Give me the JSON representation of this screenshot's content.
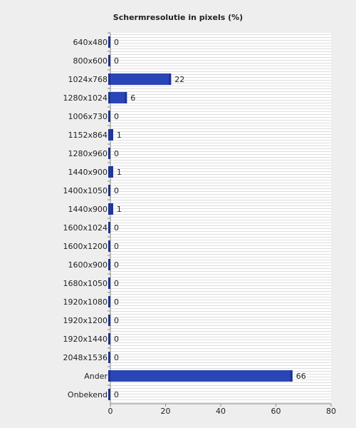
{
  "chart_data": {
    "type": "bar",
    "orientation": "horizontal",
    "title": "Schermresolutie in pixels (%)",
    "categories": [
      "640x480",
      "800x600",
      "1024x768",
      "1280x1024",
      "1006x730",
      "1152x864",
      "1280x960",
      "1440x900",
      "1400x1050",
      "1440x900",
      "1600x1024",
      "1600x1200",
      "1600x900",
      "1680x1050",
      "1920x1080",
      "1920x1200",
      "1920x1440",
      "2048x1536",
      "Ander",
      "Onbekend"
    ],
    "values": [
      0,
      0,
      22,
      6,
      0,
      1,
      0,
      1,
      0,
      1,
      0,
      0,
      0,
      0,
      0,
      0,
      0,
      0,
      66,
      0
    ],
    "color": "#2a46b6",
    "xlim": [
      0,
      80
    ],
    "xticks": [
      0,
      20,
      40,
      60,
      80
    ]
  }
}
